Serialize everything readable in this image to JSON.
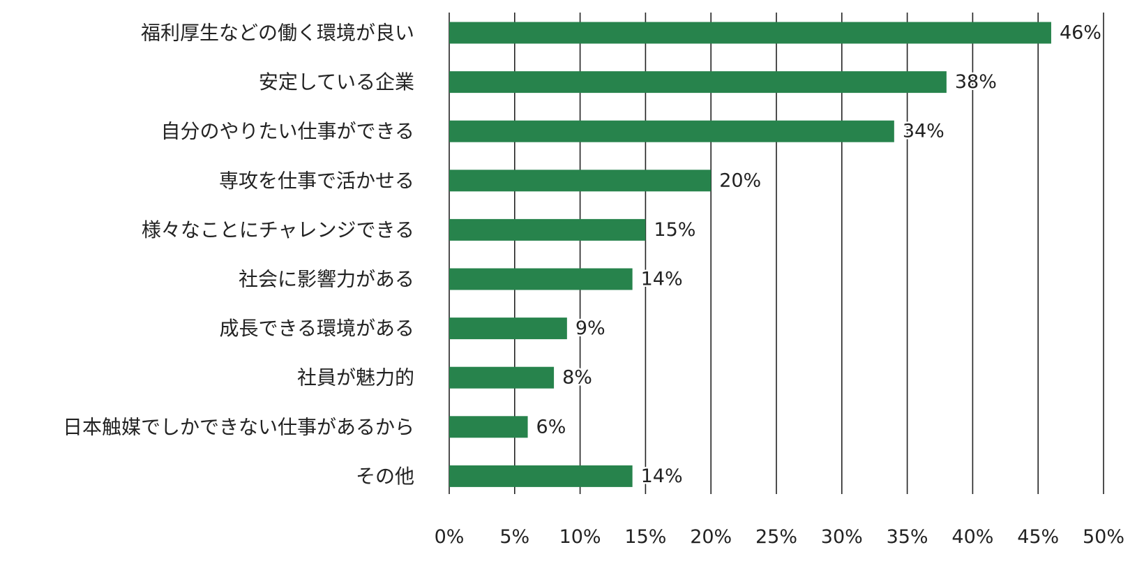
{
  "chart_data": {
    "type": "bar",
    "orientation": "horizontal",
    "categories": [
      "福利厚生などの働く環境が良い",
      "安定している企業",
      "自分のやりたい仕事ができる",
      "専攻を仕事で活かせる",
      "様々なことにチャレンジできる",
      "社会に影響力がある",
      "成長できる環境がある",
      "社員が魅力的",
      "日本触媒でしかできない仕事があるから",
      "その他"
    ],
    "values": [
      46,
      38,
      34,
      20,
      15,
      14,
      9,
      8,
      6,
      14
    ],
    "value_labels": [
      "46%",
      "38%",
      "34%",
      "20%",
      "15%",
      "14%",
      "9%",
      "8%",
      "6%",
      "14%"
    ],
    "xlim": [
      0,
      50
    ],
    "ticks": [
      0,
      5,
      10,
      15,
      20,
      25,
      30,
      35,
      40,
      45,
      50
    ],
    "tick_labels": [
      "0%",
      "5%",
      "10%",
      "15%",
      "20%",
      "25%",
      "30%",
      "35%",
      "40%",
      "45%",
      "50%"
    ],
    "title": "",
    "xlabel": "",
    "ylabel": "",
    "grid": "vertical",
    "legend": "none",
    "bar_color": "#27834c",
    "grid_color": "#222222"
  }
}
